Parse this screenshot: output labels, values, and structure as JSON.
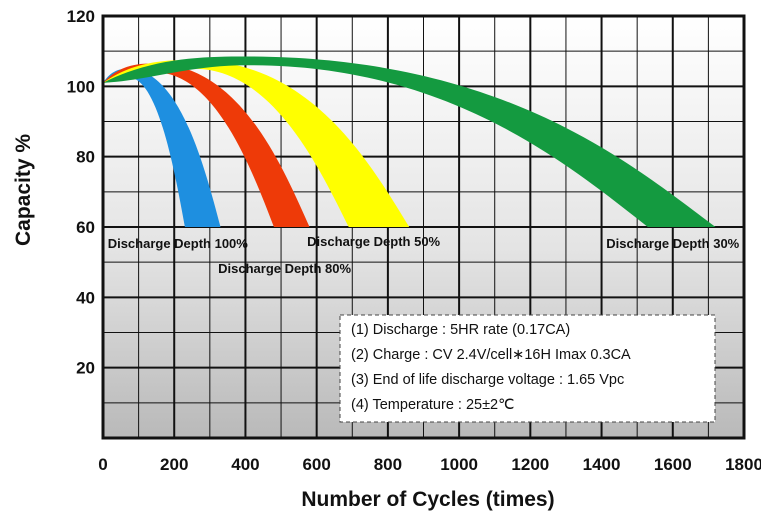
{
  "chart_data": {
    "type": "area",
    "xlabel": "Number of Cycles (times)",
    "ylabel": "Capacity %",
    "xlim": [
      0,
      1800
    ],
    "ylim": [
      0,
      120
    ],
    "x_ticks": [
      "0",
      "200",
      "400",
      "600",
      "800",
      "1000",
      "1200",
      "1400",
      "1600",
      "1800"
    ],
    "y_ticks": [
      "20",
      "40",
      "60",
      "80",
      "100",
      "120"
    ],
    "grid": true,
    "series": [
      {
        "name": "Discharge Depth 100%",
        "color": "#1e8fe0",
        "peak": [
          70,
          105
        ],
        "band_end_at_60": [
          230,
          330
        ]
      },
      {
        "name": "Discharge Depth 80%",
        "color": "#ee3a08",
        "peak": [
          140,
          106.5
        ],
        "band_end_at_60": [
          480,
          580
        ]
      },
      {
        "name": "Discharge Depth 50%",
        "color": "#ffff00",
        "peak": [
          250,
          107.5
        ],
        "band_end_at_60": [
          690,
          860
        ]
      },
      {
        "name": "Discharge Depth 30%",
        "color": "#149a40",
        "peak": [
          400,
          108.5
        ],
        "band_end_at_60": [
          1530,
          1720
        ]
      }
    ],
    "start": [
      0,
      101
    ],
    "notes": [
      "(1) Discharge : 5HR rate (0.17CA)",
      "(2) Charge : CV 2.4V/cell∗16H Imax 0.3CA",
      "(3) End of life discharge voltage : 1.65 Vpc",
      "(4) Temperature : 25±2℃"
    ]
  }
}
